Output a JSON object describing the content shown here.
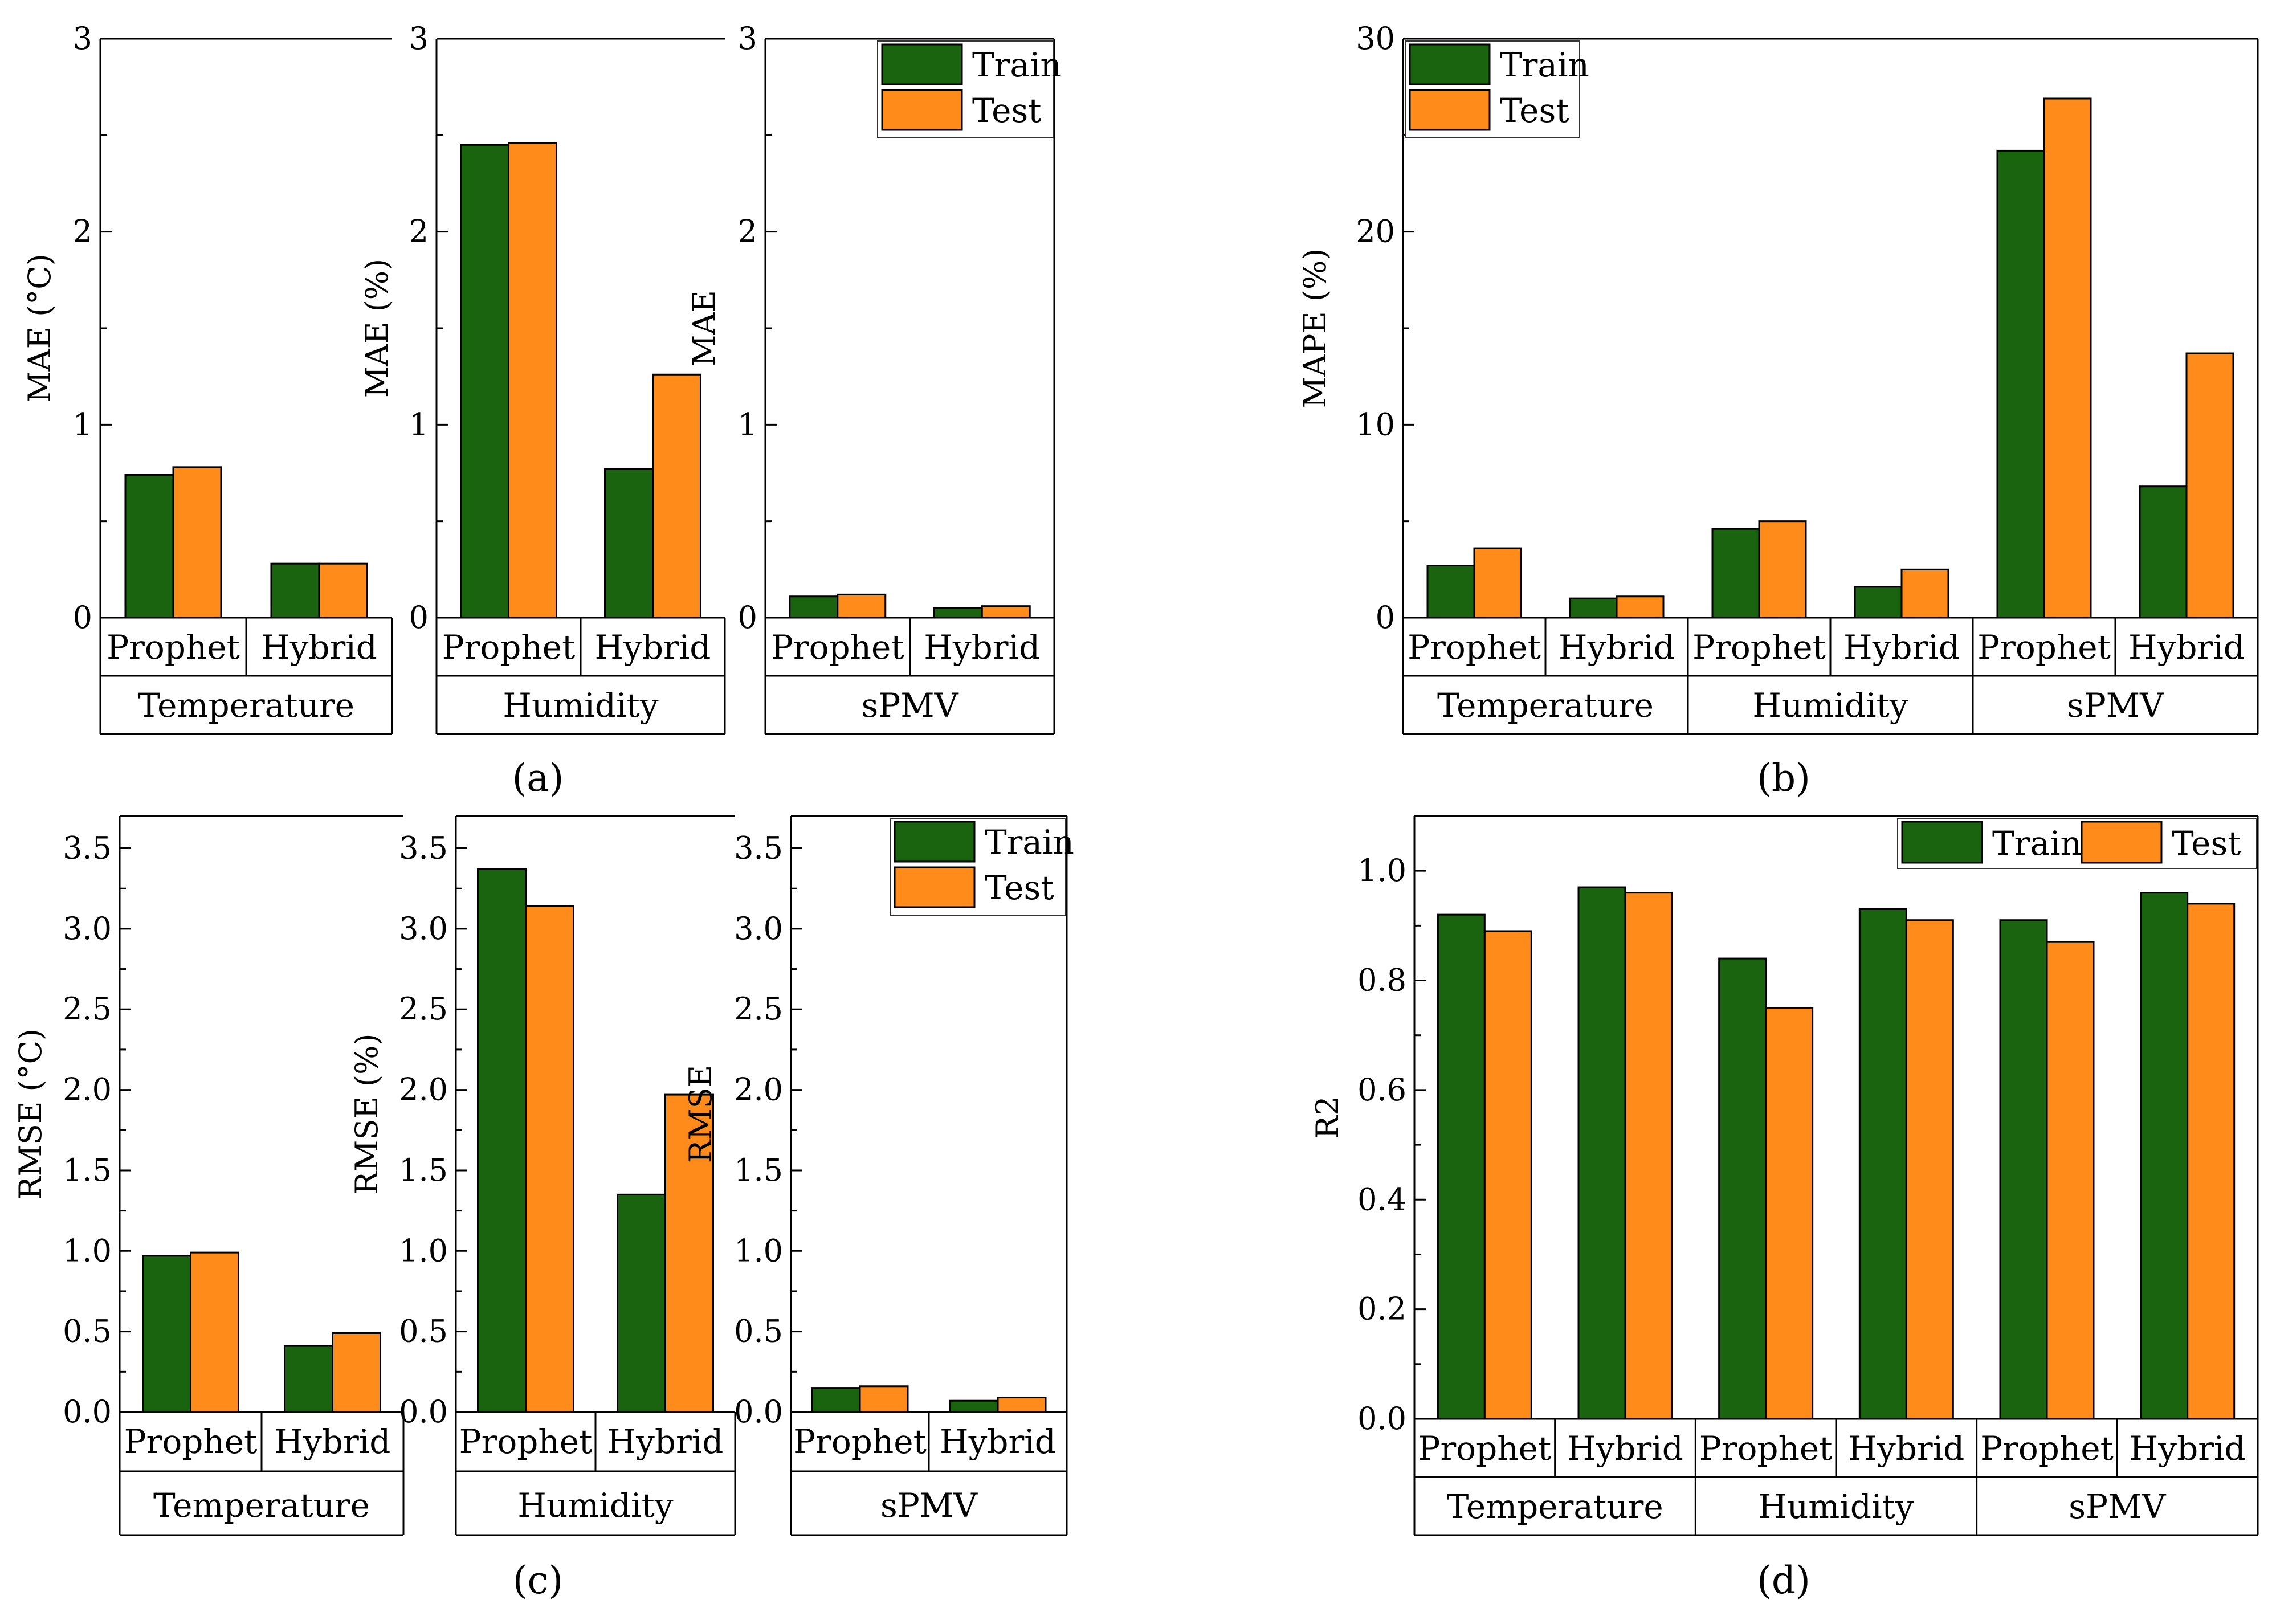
{
  "colors": {
    "train": "#1a6410",
    "test": "#ff8c1a",
    "axis": "#000000"
  },
  "chart_data": [
    {
      "id": "a",
      "type": "bar",
      "caption": "(a)",
      "legend": [
        "Train",
        "Test"
      ],
      "sub_axes": [
        {
          "group": "Temperature",
          "ylabel": "MAE (°C)",
          "ylim": [
            0,
            3
          ],
          "yticks": [
            "0",
            "1",
            "2",
            "3"
          ],
          "categories": [
            "Prophet",
            "Hybrid"
          ],
          "series": [
            {
              "name": "Train",
              "values": [
                0.74,
                0.28
              ]
            },
            {
              "name": "Test",
              "values": [
                0.78,
                0.28
              ]
            }
          ]
        },
        {
          "group": "Humidity",
          "ylabel": "MAE (%)",
          "ylim": [
            0,
            3
          ],
          "yticks": [
            "0",
            "1",
            "2",
            "3"
          ],
          "categories": [
            "Prophet",
            "Hybrid"
          ],
          "series": [
            {
              "name": "Train",
              "values": [
                2.45,
                0.77
              ]
            },
            {
              "name": "Test",
              "values": [
                2.46,
                1.26
              ]
            }
          ]
        },
        {
          "group": "sPMV",
          "ylabel": "MAE",
          "ylim": [
            0,
            3
          ],
          "yticks": [
            "0",
            "1",
            "2",
            "3"
          ],
          "categories": [
            "Prophet",
            "Hybrid"
          ],
          "series": [
            {
              "name": "Train",
              "values": [
                0.11,
                0.05
              ]
            },
            {
              "name": "Test",
              "values": [
                0.12,
                0.06
              ]
            }
          ]
        }
      ]
    },
    {
      "id": "b",
      "type": "bar",
      "caption": "(b)",
      "legend": [
        "Train",
        "Test"
      ],
      "ylabel": "MAPE (%)",
      "ylim": [
        0,
        30
      ],
      "yticks": [
        "0",
        "10",
        "20",
        "30"
      ],
      "groups": [
        "Temperature",
        "Humidity",
        "sPMV"
      ],
      "categories": [
        "Prophet",
        "Hybrid",
        "Prophet",
        "Hybrid",
        "Prophet",
        "Hybrid"
      ],
      "series": [
        {
          "name": "Train",
          "values": [
            2.7,
            1.0,
            4.6,
            1.6,
            24.2,
            6.8
          ]
        },
        {
          "name": "Test",
          "values": [
            3.6,
            1.1,
            5.0,
            2.5,
            26.9,
            13.7
          ]
        }
      ]
    },
    {
      "id": "c",
      "type": "bar",
      "caption": "(c)",
      "legend": [
        "Train",
        "Test"
      ],
      "sub_axes": [
        {
          "group": "Temperature",
          "ylabel": "RMSE (°C)",
          "ylim": [
            0,
            3.7
          ],
          "yticks": [
            "0.0",
            "0.5",
            "1.0",
            "1.5",
            "2.0",
            "2.5",
            "3.0",
            "3.5"
          ],
          "categories": [
            "Prophet",
            "Hybrid"
          ],
          "series": [
            {
              "name": "Train",
              "values": [
                0.97,
                0.41
              ]
            },
            {
              "name": "Test",
              "values": [
                0.99,
                0.49
              ]
            }
          ]
        },
        {
          "group": "Humidity",
          "ylabel": "RMSE (%)",
          "ylim": [
            0,
            3.7
          ],
          "yticks": [
            "0.0",
            "0.5",
            "1.0",
            "1.5",
            "2.0",
            "2.5",
            "3.0",
            "3.5"
          ],
          "categories": [
            "Prophet",
            "Hybrid"
          ],
          "series": [
            {
              "name": "Train",
              "values": [
                3.37,
                1.35
              ]
            },
            {
              "name": "Test",
              "values": [
                3.14,
                1.97
              ]
            }
          ]
        },
        {
          "group": "sPMV",
          "ylabel": "RMSE",
          "ylim": [
            0,
            3.7
          ],
          "yticks": [
            "0.0",
            "0.5",
            "1.0",
            "1.5",
            "2.0",
            "2.5",
            "3.0",
            "3.5"
          ],
          "categories": [
            "Prophet",
            "Hybrid"
          ],
          "series": [
            {
              "name": "Train",
              "values": [
                0.15,
                0.07
              ]
            },
            {
              "name": "Test",
              "values": [
                0.16,
                0.09
              ]
            }
          ]
        }
      ]
    },
    {
      "id": "d",
      "type": "bar",
      "caption": "(d)",
      "legend": [
        "Train",
        "Test"
      ],
      "ylabel": "R2",
      "ylim": [
        0,
        1.1
      ],
      "yticks": [
        "0.0",
        "0.2",
        "0.4",
        "0.6",
        "0.8",
        "1.0"
      ],
      "groups": [
        "Temperature",
        "Humidity",
        "sPMV"
      ],
      "categories": [
        "Prophet",
        "Hybrid",
        "Prophet",
        "Hybrid",
        "Prophet",
        "Hybrid"
      ],
      "series": [
        {
          "name": "Train",
          "values": [
            0.92,
            0.97,
            0.84,
            0.93,
            0.91,
            0.96
          ]
        },
        {
          "name": "Test",
          "values": [
            0.89,
            0.96,
            0.75,
            0.91,
            0.87,
            0.94
          ]
        }
      ]
    }
  ]
}
